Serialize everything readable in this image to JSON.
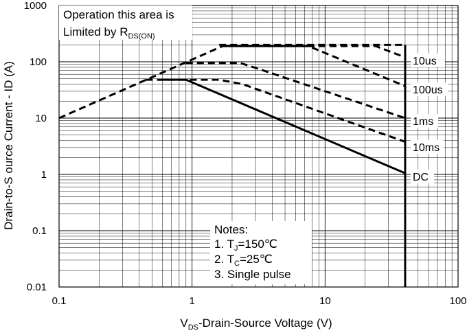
{
  "chart_data": {
    "type": "line",
    "log_x": true,
    "log_y": true,
    "grid": true,
    "xlim": [
      0.1,
      100
    ],
    "ylim": [
      0.01,
      1000
    ],
    "x_ticks": [
      "0.1",
      "1",
      "10",
      "100"
    ],
    "y_ticks": [
      "0.01",
      "0.1",
      "1",
      "10",
      "100",
      "1000"
    ],
    "xlabel": {
      "prefix": "V",
      "sub": "DS",
      "rest": "-Drain-Source Voltage (V)"
    },
    "ylabel": "Drain-to-S ource Current - ID (A)",
    "annotation": {
      "line1": "Operation this area is",
      "line2": "Limited  by R",
      "sub": "DS(ON)"
    },
    "notes": {
      "title": "Notes:",
      "n1_pre": "1. T",
      "n1_sub": "J",
      "n1_post": "=150℃",
      "n2_pre": "2. T",
      "n2_sub": "C",
      "n2_post": "=25℃",
      "n3": "3. Single pulse"
    },
    "limits": {
      "id_max": 200,
      "vds_max": 40
    },
    "series": [
      {
        "name": "10us",
        "style": "dashed",
        "points": [
          [
            0.1,
            10
          ],
          [
            1.7,
            190
          ],
          [
            24,
            190
          ],
          [
            40,
            120
          ]
        ]
      },
      {
        "name": "100us",
        "style": "dashed",
        "points": [
          [
            1.75,
            190
          ],
          [
            7.5,
            190
          ],
          [
            40,
            37
          ]
        ]
      },
      {
        "name": "1ms",
        "style": "dashed",
        "points": [
          [
            0.9,
            95
          ],
          [
            1.4,
            95
          ],
          [
            2.3,
            95
          ],
          [
            3.0,
            78
          ],
          [
            40,
            10
          ]
        ]
      },
      {
        "name": "10ms",
        "style": "dashed",
        "points": [
          [
            0.45,
            48
          ],
          [
            1.6,
            48
          ],
          [
            2.4,
            40
          ],
          [
            40,
            3.8
          ]
        ]
      },
      {
        "name": "DC",
        "style": "solid",
        "points": [
          [
            0.55,
            48
          ],
          [
            0.9,
            48
          ],
          [
            40,
            1.05
          ]
        ]
      }
    ]
  }
}
